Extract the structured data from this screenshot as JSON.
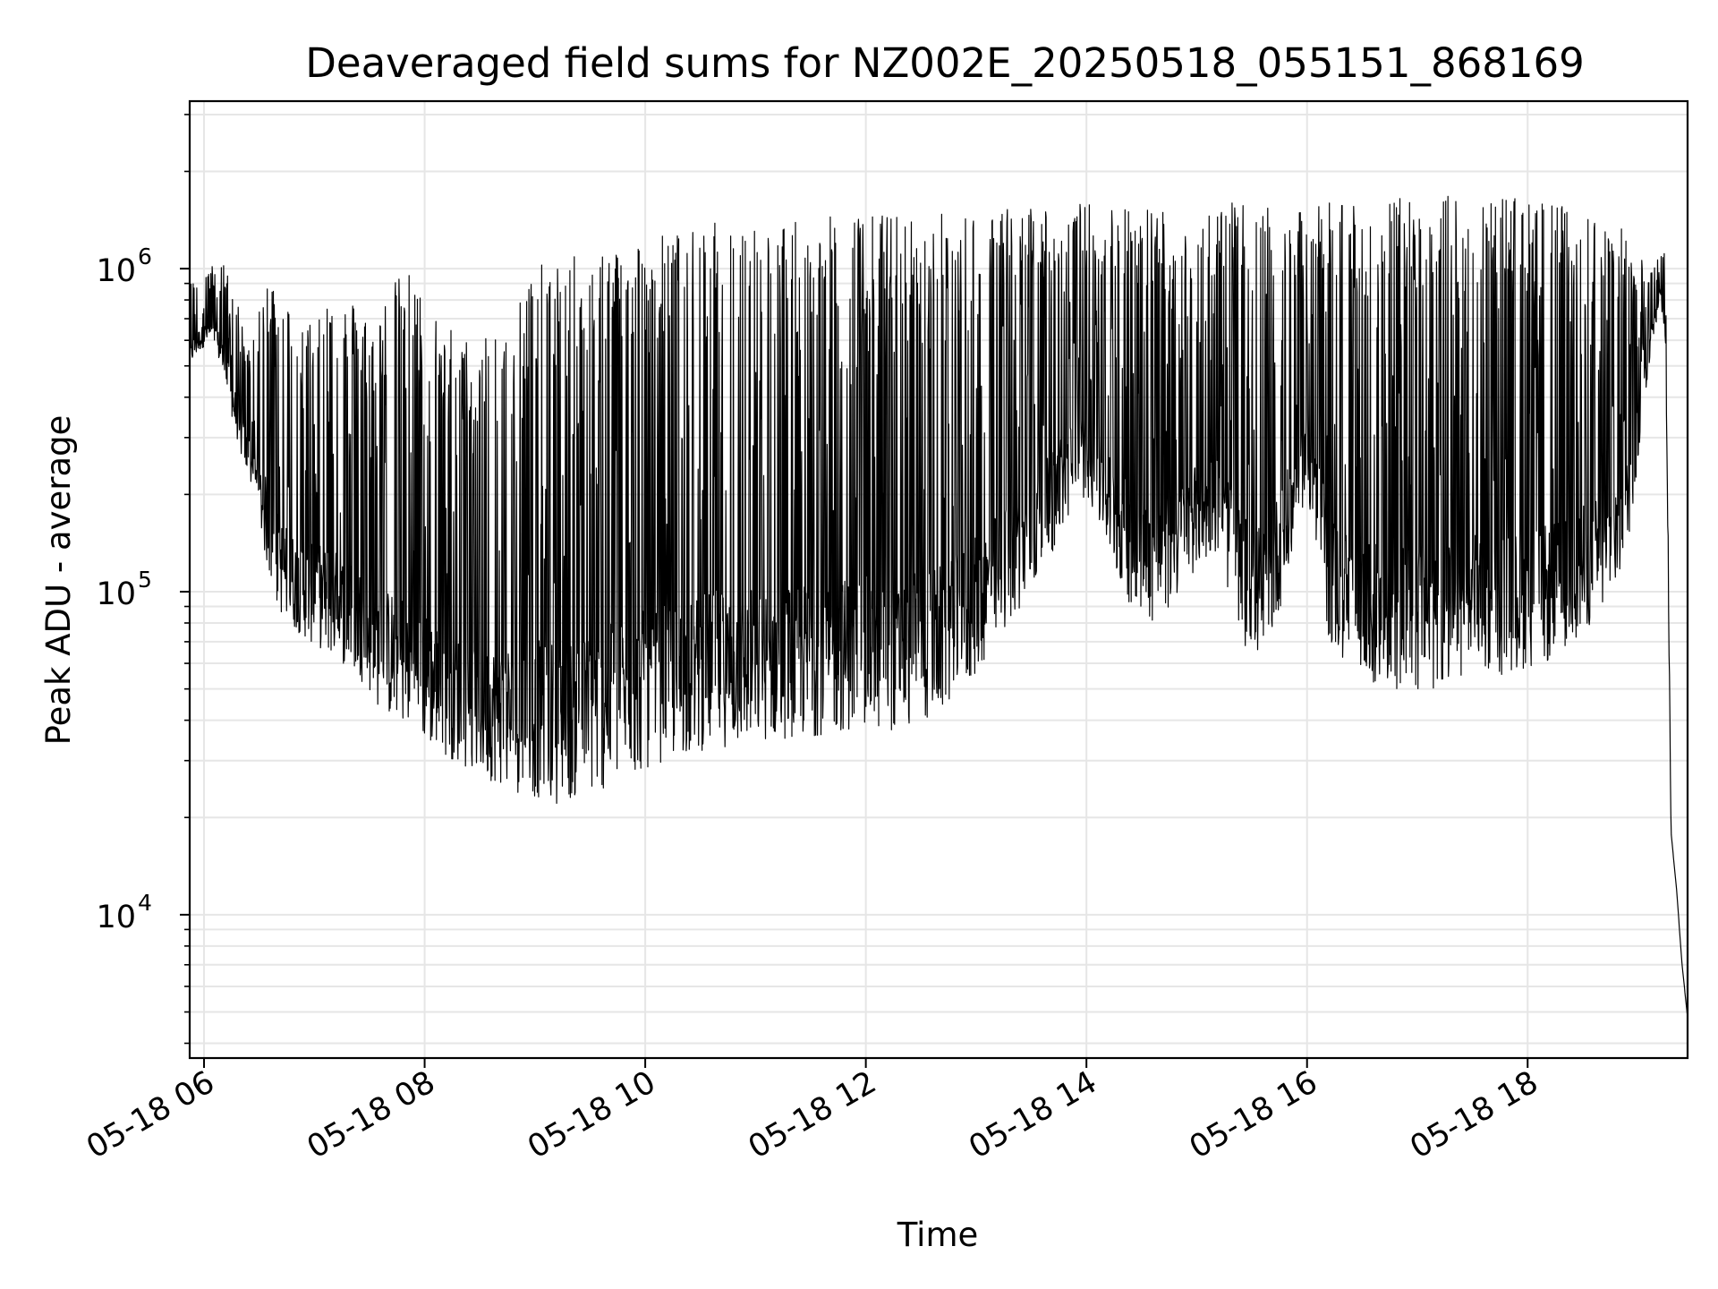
{
  "chart_data": {
    "type": "line",
    "title": "Deaveraged field sums for NZ002E_20250518_055151_868169",
    "xlabel": "Time",
    "ylabel": "Peak ADU - average",
    "yscale": "log",
    "grid": true,
    "x_unit": "hours (05-18)",
    "xlim": [
      5.87,
      19.45
    ],
    "ylim": [
      3600,
      3300000
    ],
    "x_ticks": [
      {
        "value": 6,
        "label": "05-18 06"
      },
      {
        "value": 8,
        "label": "05-18 08"
      },
      {
        "value": 10,
        "label": "05-18 10"
      },
      {
        "value": 12,
        "label": "05-18 12"
      },
      {
        "value": 14,
        "label": "05-18 14"
      },
      {
        "value": 16,
        "label": "05-18 16"
      },
      {
        "value": 18,
        "label": "05-18 18"
      }
    ],
    "y_ticks": [
      {
        "value": 10000,
        "base": "10",
        "exp": "4"
      },
      {
        "value": 100000,
        "base": "10",
        "exp": "5"
      },
      {
        "value": 1000000,
        "base": "10",
        "exp": "6"
      }
    ],
    "series": [
      {
        "color": "#000000",
        "x": [
          5.87,
          5.95,
          6.05,
          6.15,
          6.25,
          6.35,
          6.45,
          6.55,
          6.65,
          6.75,
          6.85,
          6.95,
          7.1,
          7.25,
          7.4,
          7.55,
          7.7,
          7.85,
          8.0,
          8.2,
          8.4,
          8.6,
          8.8,
          9.0,
          9.2,
          9.4,
          9.6,
          9.8,
          10.0,
          10.2,
          10.4,
          10.6,
          10.8,
          11.0,
          11.2,
          11.4,
          11.6,
          11.8,
          12.0,
          12.2,
          12.4,
          12.6,
          12.8,
          13.0,
          13.2,
          13.4,
          13.6,
          13.8,
          14.0,
          14.2,
          14.4,
          14.6,
          14.8,
          15.0,
          15.2,
          15.4,
          15.6,
          15.8,
          16.0,
          16.2,
          16.4,
          16.6,
          16.8,
          17.0,
          17.2,
          17.4,
          17.6,
          17.8,
          18.0,
          18.2,
          18.4,
          18.6,
          18.8,
          18.9,
          19.0,
          19.1,
          19.2,
          19.25,
          19.3,
          19.35,
          19.4,
          19.45
        ],
        "y_low": [
          500000,
          550000,
          600000,
          500000,
          350000,
          250000,
          200000,
          130000,
          90000,
          80000,
          75000,
          70000,
          65000,
          60000,
          55000,
          45000,
          40000,
          38000,
          34000,
          31000,
          28000,
          26000,
          24000,
          23000,
          22000,
          23000,
          24000,
          26000,
          28000,
          30000,
          31000,
          33000,
          33000,
          34000,
          35000,
          35000,
          36000,
          37000,
          37000,
          37000,
          38000,
          40000,
          45000,
          55000,
          70000,
          90000,
          110000,
          160000,
          200000,
          130000,
          90000,
          80000,
          90000,
          120000,
          130000,
          70000,
          60000,
          100000,
          200000,
          70000,
          55000,
          50000,
          50000,
          48000,
          50000,
          52000,
          55000,
          55000,
          58000,
          60000,
          70000,
          80000,
          100000,
          130000,
          250000,
          500000,
          800000,
          600000,
          18000,
          12000,
          7000,
          4800
        ],
        "y_high": [
          900000,
          950000,
          1000000,
          1100000,
          900000,
          700000,
          600000,
          900000,
          1000000,
          800000,
          700000,
          700000,
          900000,
          800000,
          800000,
          700000,
          900000,
          1000000,
          800000,
          700000,
          600000,
          700000,
          900000,
          1000000,
          1100000,
          1100000,
          1200000,
          1200000,
          1300000,
          1300000,
          1300000,
          1400000,
          1400000,
          1400000,
          1400000,
          1400000,
          1450000,
          1450000,
          1500000,
          1500000,
          1450000,
          1500000,
          1500000,
          1500000,
          1550000,
          1550000,
          1600000,
          1600000,
          1600000,
          1600000,
          1600000,
          1600000,
          1550000,
          1500000,
          1600000,
          1600000,
          1550000,
          1500000,
          1500000,
          1650000,
          1650000,
          1650000,
          1650000,
          1650000,
          1700000,
          1700000,
          1700000,
          1700000,
          1650000,
          1600000,
          1550000,
          1500000,
          1400000,
          1300000,
          1100000,
          1000000,
          1200000,
          1100000,
          18000,
          12000,
          7000,
          4800
        ]
      }
    ]
  }
}
